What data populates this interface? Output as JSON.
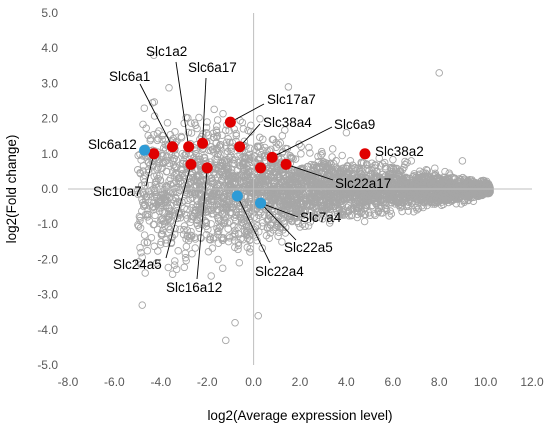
{
  "chart_data": {
    "type": "scatter",
    "title": "",
    "xlabel": "log2(Average expression level)",
    "ylabel": "log2(Fold change)",
    "xlim": [
      -8.0,
      12.0
    ],
    "ylim": [
      -5.0,
      5.0
    ],
    "x_ticks": [
      "-8.0",
      "-6.0",
      "-4.0",
      "-2.0",
      "0.0",
      "2.0",
      "4.0",
      "6.0",
      "8.0",
      "10.0",
      "12.0"
    ],
    "y_ticks": [
      "5.0",
      "4.0",
      "3.0",
      "2.0",
      "1.0",
      "0.0",
      "-1.0",
      "-2.0",
      "-3.0",
      "-4.0",
      "-5.0"
    ],
    "grid": false,
    "legend": "none",
    "colors": {
      "background_points": "#a6a6a6",
      "upregulated": "#e00000",
      "downregulated": "#2e9bd6"
    },
    "series": [
      {
        "color": "upregulated",
        "points": [
          {
            "label": "Slc6a1",
            "x": -3.5,
            "y": 1.2
          },
          {
            "label": "Slc1a2",
            "x": -2.8,
            "y": 1.2
          },
          {
            "label": "Slc6a17",
            "x": -2.2,
            "y": 1.3
          },
          {
            "label": "Slc17a7",
            "x": -1.0,
            "y": 1.9
          },
          {
            "label": "Slc38a4",
            "x": -0.6,
            "y": 1.2
          },
          {
            "label": "Slc6a9",
            "x": 0.8,
            "y": 0.9
          },
          {
            "label": "Slc38a2",
            "x": 4.8,
            "y": 1.0
          },
          {
            "label": "Slc22a17",
            "x": 1.4,
            "y": 0.7
          },
          {
            "label": "",
            "x": 0.3,
            "y": 0.6
          },
          {
            "label": "Slc10a7",
            "x": -4.3,
            "y": 1.0
          },
          {
            "label": "Slc24a5",
            "x": -2.7,
            "y": 0.7
          },
          {
            "label": "Slc16a12",
            "x": -2.0,
            "y": 0.6
          }
        ]
      },
      {
        "color": "downregulated",
        "points": [
          {
            "label": "Slc6a12",
            "x": -4.7,
            "y": 1.1
          },
          {
            "label": "Slc22a4",
            "x": -0.7,
            "y": -0.2
          },
          {
            "label": "Slc7a4",
            "x": 0.3,
            "y": -0.4
          },
          {
            "label": "Slc22a5",
            "x": 0.3,
            "y": -0.4
          }
        ]
      }
    ],
    "background_cloud": {
      "description_of_shape": "dense cloud of open grey circles",
      "x_range": [
        -5.0,
        10.2
      ],
      "center_y": 0.0,
      "spread_profile": [
        {
          "x": -5.0,
          "y_half_width": 2.4
        },
        {
          "x": -3.0,
          "y_half_width": 2.3
        },
        {
          "x": -1.0,
          "y_half_width": 2.0
        },
        {
          "x": 1.0,
          "y_half_width": 1.4
        },
        {
          "x": 3.0,
          "y_half_width": 1.0
        },
        {
          "x": 5.0,
          "y_half_width": 0.8
        },
        {
          "x": 7.0,
          "y_half_width": 0.6
        },
        {
          "x": 9.0,
          "y_half_width": 0.4
        },
        {
          "x": 10.2,
          "y_half_width": 0.2
        }
      ],
      "outliers": [
        {
          "x": 8.0,
          "y": 3.3
        },
        {
          "x": -0.8,
          "y": -3.8
        },
        {
          "x": -1.2,
          "y": -4.3
        },
        {
          "x": -4.8,
          "y": -3.3
        },
        {
          "x": 0.2,
          "y": -3.6
        },
        {
          "x": 1.5,
          "y": 2.9
        },
        {
          "x": 4.0,
          "y": 1.6
        },
        {
          "x": -4.3,
          "y": 3.8
        },
        {
          "x": 9.0,
          "y": 0.8
        }
      ]
    }
  }
}
